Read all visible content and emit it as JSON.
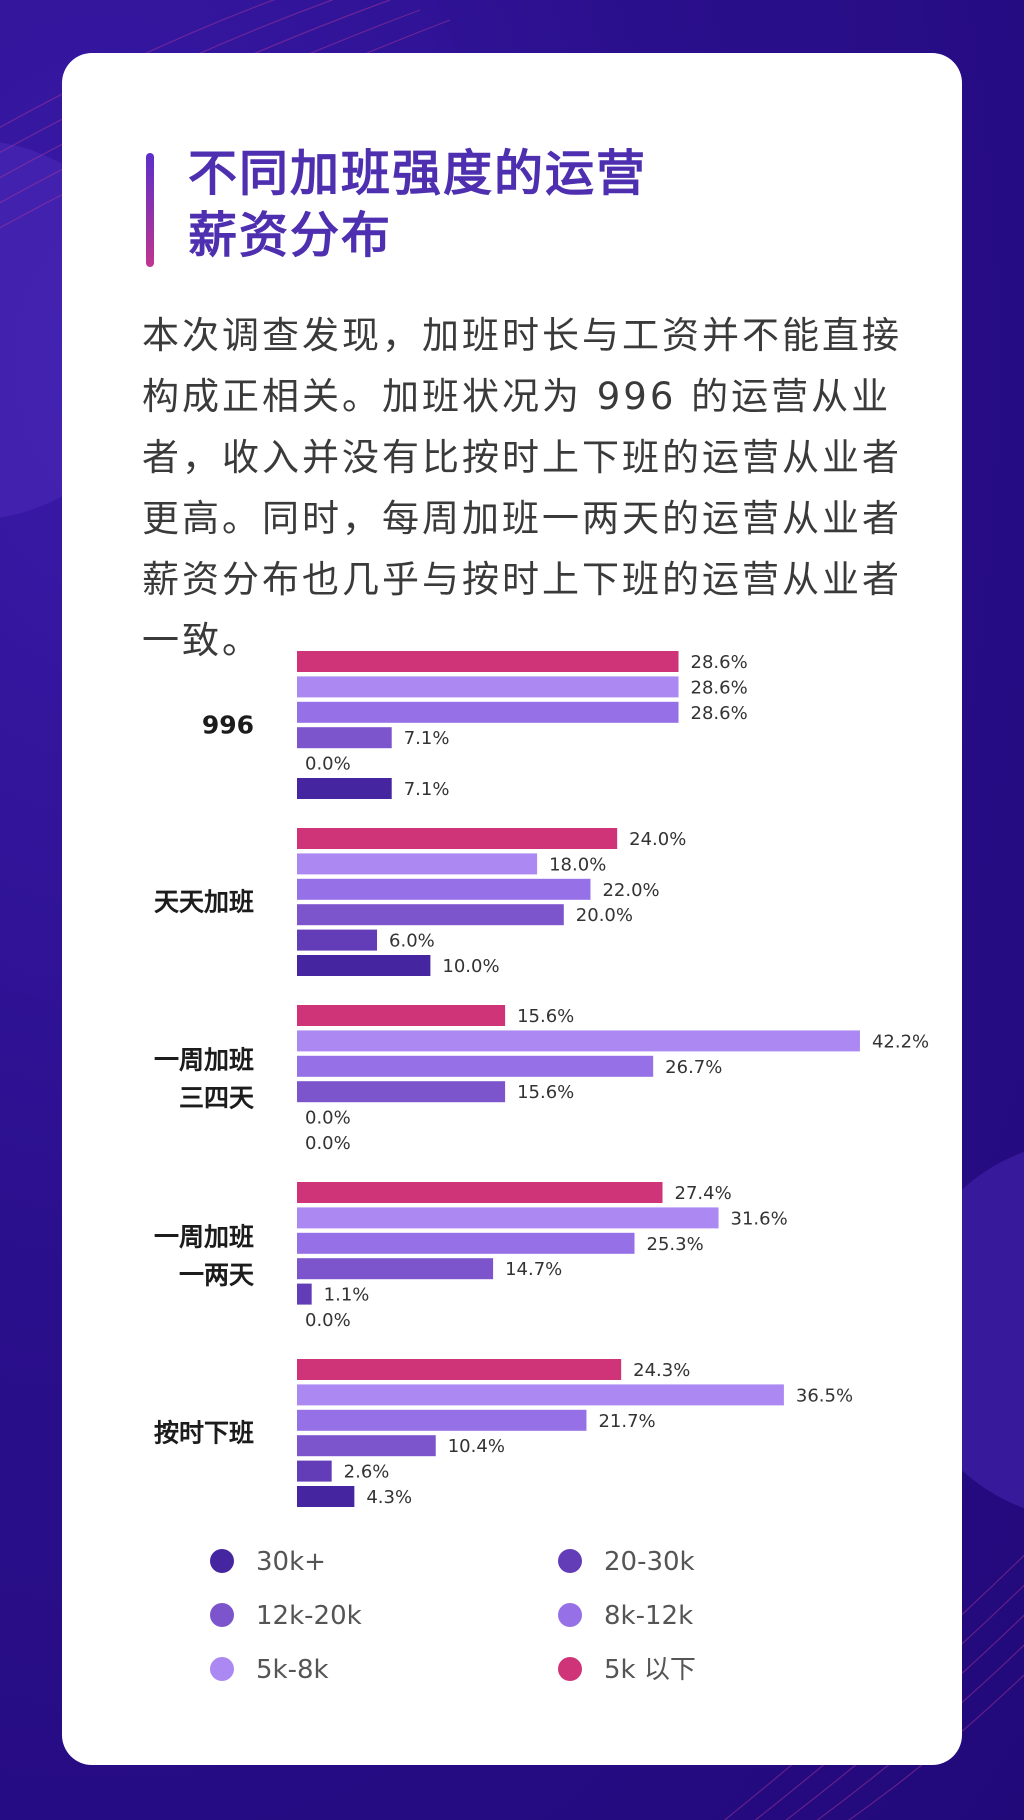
{
  "page": {
    "title_line1": "不同加班强度的运营",
    "title_line2": "薪资分布",
    "intro": "本次调查发现，加班时长与工资并不能直接构成正相关。加班状况为 996 的运营从业者，收入并没有比按时上下班的运营从业者更高。同时，每周加班一两天的运营从业者薪资分布也几乎与按时上下班的运营从业者一致。"
  },
  "colors": {
    "background": "#2a0f8c",
    "title": "#4d2fb0"
  },
  "chart_data": {
    "type": "bar",
    "orientation": "horizontal",
    "title": "",
    "xlabel": "",
    "ylabel": "",
    "xlim": [
      0,
      50
    ],
    "grid": false,
    "legend_position": "bottom",
    "categories": [
      [
        "996"
      ],
      [
        "天天加班"
      ],
      [
        "一周加班",
        "三四天"
      ],
      [
        "一周加班",
        "一两天"
      ],
      [
        "按时下班"
      ]
    ],
    "series": [
      {
        "name": "5k 以下",
        "color": "#cf3478",
        "values": [
          28.6,
          24.0,
          15.6,
          27.4,
          24.3
        ]
      },
      {
        "name": "5k-8k",
        "color": "#ac89f2",
        "values": [
          28.6,
          18.0,
          42.2,
          31.6,
          36.5
        ]
      },
      {
        "name": "8k-12k",
        "color": "#9570e6",
        "values": [
          28.6,
          22.0,
          26.7,
          25.3,
          21.7
        ]
      },
      {
        "name": "12k-20k",
        "color": "#7c55cc",
        "values": [
          7.1,
          20.0,
          15.6,
          14.7,
          10.4
        ]
      },
      {
        "name": "20-30k",
        "color": "#633cb8",
        "values": [
          0.0,
          6.0,
          0.0,
          1.1,
          2.6
        ]
      },
      {
        "name": "30k+",
        "color": "#4625a0",
        "values": [
          7.1,
          10.0,
          0.0,
          0.0,
          4.3
        ]
      }
    ],
    "value_suffix": "%",
    "legend_order": [
      "30k+",
      "20-30k",
      "12k-20k",
      "8k-12k",
      "5k-8k",
      "5k 以下"
    ]
  }
}
